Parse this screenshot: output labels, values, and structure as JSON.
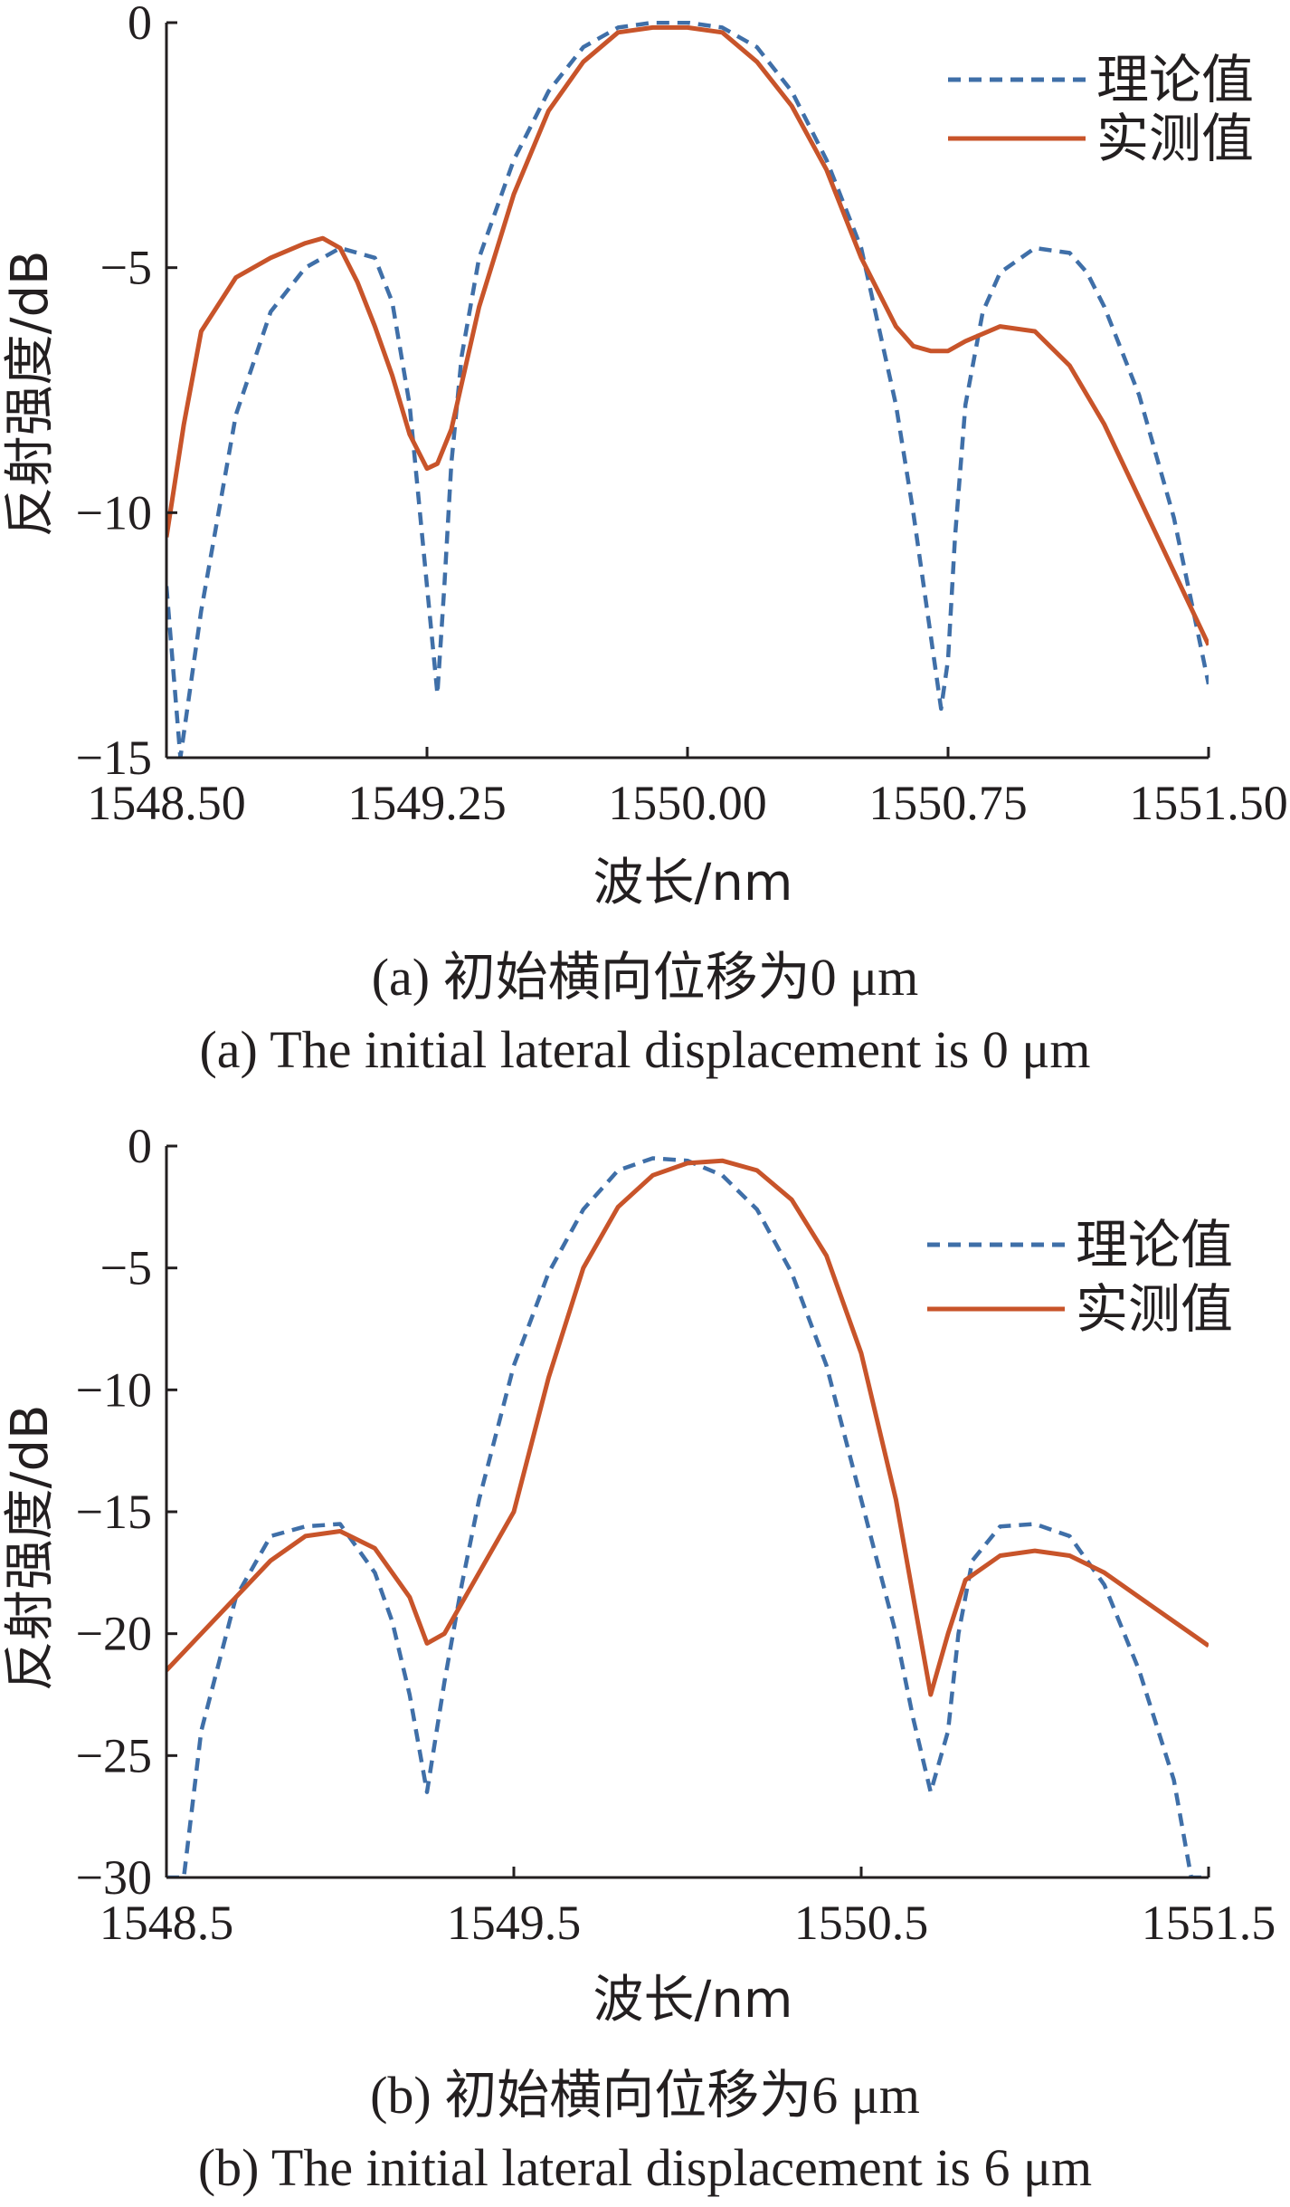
{
  "colors": {
    "theory": "#3f6fa8",
    "measured": "#c8542a",
    "axis": "#231f20"
  },
  "captions": [
    {
      "cn": "(a) 初始横向位移为0 μm",
      "en": "(a) The initial lateral displacement is 0 μm"
    },
    {
      "cn": "(b) 初始横向位移为6 μm",
      "en": "(b) The initial lateral displacement is 6 μm"
    }
  ],
  "chart_data": [
    {
      "type": "line",
      "title": "",
      "xlabel": "波长/nm",
      "ylabel": "反射强度/dB",
      "xlim": [
        1548.5,
        1551.5
      ],
      "ylim": [
        -15,
        0
      ],
      "xticks": [
        1548.5,
        1549.25,
        1550.0,
        1550.75,
        1551.5
      ],
      "xtick_labels": [
        "1548.50",
        "1549.25",
        "1550.00",
        "1550.75",
        "1551.50"
      ],
      "yticks": [
        0,
        -5,
        -10,
        -15
      ],
      "ytick_labels": [
        "0",
        "−5",
        "−10",
        "−15"
      ],
      "grid": false,
      "legend_position": "top-right",
      "series": [
        {
          "name": "理论值",
          "style": "dashed",
          "x": [
            1548.5,
            1548.54,
            1548.6,
            1548.7,
            1548.8,
            1548.9,
            1549.0,
            1549.1,
            1549.15,
            1549.2,
            1549.25,
            1549.28,
            1549.3,
            1549.32,
            1549.35,
            1549.4,
            1549.5,
            1549.6,
            1549.7,
            1549.8,
            1549.9,
            1550.0,
            1550.1,
            1550.2,
            1550.3,
            1550.4,
            1550.5,
            1550.6,
            1550.65,
            1550.7,
            1550.73,
            1550.75,
            1550.77,
            1550.8,
            1550.85,
            1550.9,
            1551.0,
            1551.1,
            1551.15,
            1551.2,
            1551.3,
            1551.4,
            1551.5
          ],
          "y": [
            -11.5,
            -15.0,
            -12.0,
            -8.0,
            -5.9,
            -5.0,
            -4.6,
            -4.8,
            -5.7,
            -7.8,
            -11.5,
            -13.7,
            -11.5,
            -9.0,
            -6.8,
            -4.8,
            -2.8,
            -1.4,
            -0.5,
            -0.1,
            0.0,
            0.0,
            -0.1,
            -0.5,
            -1.4,
            -2.8,
            -4.6,
            -7.8,
            -10.0,
            -12.5,
            -14.0,
            -13.0,
            -10.5,
            -7.8,
            -5.9,
            -5.1,
            -4.6,
            -4.7,
            -5.1,
            -5.8,
            -7.6,
            -10.1,
            -13.5
          ]
        },
        {
          "name": "实测值",
          "style": "solid",
          "x": [
            1548.5,
            1548.55,
            1548.6,
            1548.7,
            1548.8,
            1548.9,
            1548.95,
            1549.0,
            1549.05,
            1549.1,
            1549.15,
            1549.2,
            1549.25,
            1549.28,
            1549.32,
            1549.4,
            1549.5,
            1549.6,
            1549.7,
            1549.8,
            1549.9,
            1550.0,
            1550.1,
            1550.2,
            1550.3,
            1550.4,
            1550.5,
            1550.6,
            1550.65,
            1550.7,
            1550.75,
            1550.8,
            1550.9,
            1551.0,
            1551.1,
            1551.2,
            1551.3,
            1551.4,
            1551.5
          ],
          "y": [
            -10.5,
            -8.2,
            -6.3,
            -5.2,
            -4.8,
            -4.5,
            -4.4,
            -4.6,
            -5.3,
            -6.2,
            -7.2,
            -8.4,
            -9.1,
            -9.0,
            -8.3,
            -5.8,
            -3.5,
            -1.8,
            -0.8,
            -0.2,
            -0.1,
            -0.1,
            -0.2,
            -0.8,
            -1.7,
            -3.0,
            -4.8,
            -6.2,
            -6.6,
            -6.7,
            -6.7,
            -6.5,
            -6.2,
            -6.3,
            -7.0,
            -8.2,
            -9.7,
            -11.2,
            -12.7
          ]
        }
      ]
    },
    {
      "type": "line",
      "title": "",
      "xlabel": "波长/nm",
      "ylabel": "反射强度/dB",
      "xlim": [
        1548.5,
        1551.5
      ],
      "ylim": [
        -30,
        0
      ],
      "xticks": [
        1548.5,
        1549.5,
        1550.5,
        1551.5
      ],
      "xtick_labels": [
        "1548.5",
        "1549.5",
        "1550.5",
        "1551.5"
      ],
      "yticks": [
        0,
        -5,
        -10,
        -15,
        -20,
        -25,
        -30
      ],
      "ytick_labels": [
        "0",
        "−5",
        "−10",
        "−15",
        "−20",
        "−25",
        "−30"
      ],
      "grid": false,
      "legend_position": "top-right",
      "series": [
        {
          "name": "理论值",
          "style": "dashed",
          "x": [
            1548.5,
            1548.55,
            1548.6,
            1548.7,
            1548.8,
            1548.9,
            1549.0,
            1549.1,
            1549.15,
            1549.2,
            1549.25,
            1549.3,
            1549.35,
            1549.4,
            1549.5,
            1549.6,
            1549.7,
            1549.8,
            1549.9,
            1550.0,
            1550.1,
            1550.2,
            1550.3,
            1550.4,
            1550.5,
            1550.6,
            1550.65,
            1550.7,
            1550.75,
            1550.78,
            1550.82,
            1550.9,
            1551.0,
            1551.1,
            1551.2,
            1551.3,
            1551.4,
            1551.45,
            1551.5
          ],
          "y": [
            -30.0,
            -30.0,
            -24.0,
            -18.5,
            -16.0,
            -15.6,
            -15.5,
            -17.5,
            -19.5,
            -22.5,
            -26.5,
            -22.0,
            -18.0,
            -14.5,
            -9.0,
            -5.2,
            -2.6,
            -1.0,
            -0.5,
            -0.6,
            -1.2,
            -2.6,
            -5.2,
            -9.0,
            -14.5,
            -20.0,
            -23.5,
            -26.5,
            -24.0,
            -20.0,
            -17.0,
            -15.6,
            -15.5,
            -16.0,
            -18.0,
            -21.5,
            -26.0,
            -30.0,
            -30.0
          ]
        },
        {
          "name": "实测值",
          "style": "solid",
          "x": [
            1548.5,
            1548.6,
            1548.7,
            1548.8,
            1548.9,
            1549.0,
            1549.1,
            1549.2,
            1549.25,
            1549.3,
            1549.4,
            1549.5,
            1549.6,
            1549.7,
            1549.8,
            1549.9,
            1550.0,
            1550.1,
            1550.2,
            1550.3,
            1550.4,
            1550.5,
            1550.6,
            1550.65,
            1550.7,
            1550.75,
            1550.8,
            1550.9,
            1551.0,
            1551.1,
            1551.2,
            1551.3,
            1551.4,
            1551.5
          ],
          "y": [
            -21.5,
            -20.0,
            -18.5,
            -17.0,
            -16.0,
            -15.8,
            -16.5,
            -18.5,
            -20.4,
            -20.0,
            -17.5,
            -15.0,
            -9.5,
            -5.0,
            -2.5,
            -1.2,
            -0.7,
            -0.6,
            -1.0,
            -2.2,
            -4.5,
            -8.5,
            -14.5,
            -18.5,
            -22.5,
            -20.0,
            -17.8,
            -16.8,
            -16.6,
            -16.8,
            -17.5,
            -18.5,
            -19.5,
            -20.5
          ]
        }
      ]
    }
  ]
}
